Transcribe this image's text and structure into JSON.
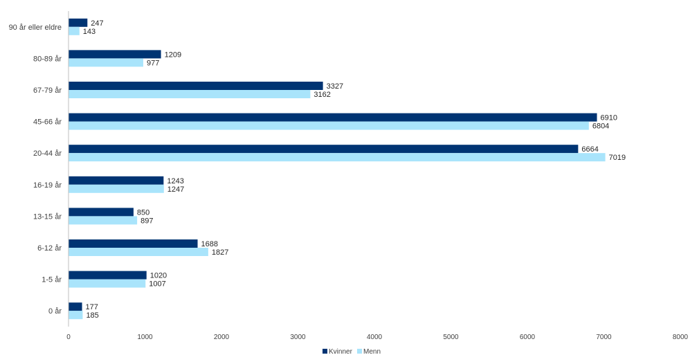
{
  "chart_data": {
    "type": "bar",
    "orientation": "horizontal",
    "title": "",
    "xlabel": "",
    "ylabel": "",
    "categories": [
      "90 år eller eldre",
      "80-89 år",
      "67-79 år",
      "45-66 år",
      "20-44 år",
      "16-19 år",
      "13-15 år",
      "6-12 år",
      "1-5 år",
      "0 år"
    ],
    "series": [
      {
        "name": "Kvinner",
        "color": "#003473",
        "values": [
          247,
          1209,
          3327,
          6910,
          6664,
          1243,
          850,
          1688,
          1020,
          177
        ]
      },
      {
        "name": "Menn",
        "color": "#a9e4fb",
        "values": [
          143,
          977,
          3162,
          6804,
          7019,
          1247,
          897,
          1827,
          1007,
          185
        ]
      }
    ],
    "xlim": [
      0,
      8000
    ],
    "xticks": [
      0,
      1000,
      2000,
      3000,
      4000,
      5000,
      6000,
      7000,
      8000
    ],
    "grid": false,
    "legend_position": "bottom",
    "data_labels": true
  }
}
